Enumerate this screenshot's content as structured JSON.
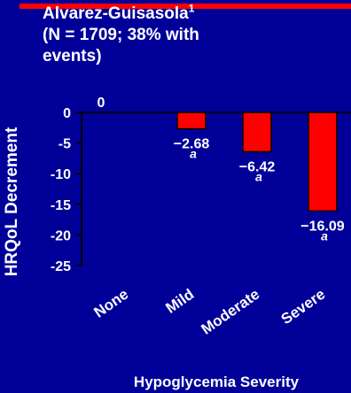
{
  "header": {
    "author": "Alvarez-Guisasola",
    "footnote_mark": "1",
    "line2": "(N = 1709; 38% with",
    "line3": "events)"
  },
  "colors": {
    "background": "#000099",
    "bar": "#ff0000",
    "text": "#ffffff",
    "rule": "#ff0000"
  },
  "chart_data": {
    "type": "bar",
    "categories": [
      "None",
      "Mild",
      "Moderate",
      "Severe"
    ],
    "values": [
      0,
      -2.68,
      -6.42,
      -16.09
    ],
    "value_labels": [
      "0",
      "−2.68",
      "−6.42",
      "−16.09"
    ],
    "significance_marks": [
      "",
      "a",
      "a",
      "a"
    ],
    "xlabel": "Hypoglycemia Severity",
    "ylabel": "HRQoL Decrement",
    "ylim": [
      -25,
      0
    ],
    "yticks": [
      0,
      -5,
      -10,
      -15,
      -20,
      -25
    ],
    "ytick_labels": [
      "0",
      "-5",
      "-10",
      "-15",
      "-20",
      "-25"
    ],
    "grid": false,
    "legend": "none"
  }
}
